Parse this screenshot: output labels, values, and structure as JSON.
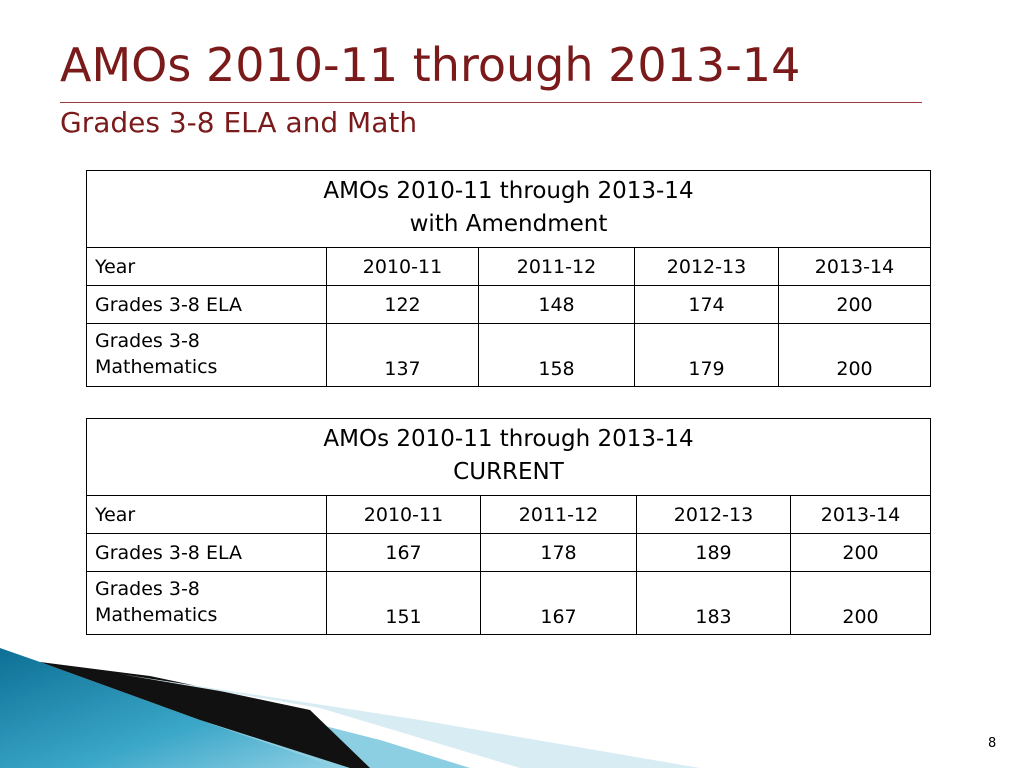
{
  "header": {
    "title": "AMOs 2010-11 through 2013-14",
    "subtitle": "Grades 3-8 ELA and Math"
  },
  "tables": [
    {
      "title_lines": [
        "AMOs 2010-11 through 2013-14",
        "with Amendment"
      ],
      "columns": [
        "Year",
        "2010-11",
        "2011-12",
        "2012-13",
        "2013-14"
      ],
      "rows": [
        {
          "label_lines": [
            "Grades 3-8 ELA"
          ],
          "values": [
            122,
            148,
            174,
            200
          ]
        },
        {
          "label_lines": [
            "Grades 3-8",
            "Mathematics"
          ],
          "values": [
            137,
            158,
            179,
            200
          ]
        }
      ]
    },
    {
      "title_lines": [
        "AMOs 2010-11 through 2013-14",
        "CURRENT"
      ],
      "columns": [
        "Year",
        "2010-11",
        "2011-12",
        "2012-13",
        "2013-14"
      ],
      "rows": [
        {
          "label_lines": [
            "Grades 3-8 ELA"
          ],
          "values": [
            167,
            178,
            189,
            200
          ]
        },
        {
          "label_lines": [
            "Grades 3-8",
            "Mathematics"
          ],
          "values": [
            151,
            167,
            183,
            200
          ]
        }
      ]
    }
  ],
  "page_number": "8"
}
